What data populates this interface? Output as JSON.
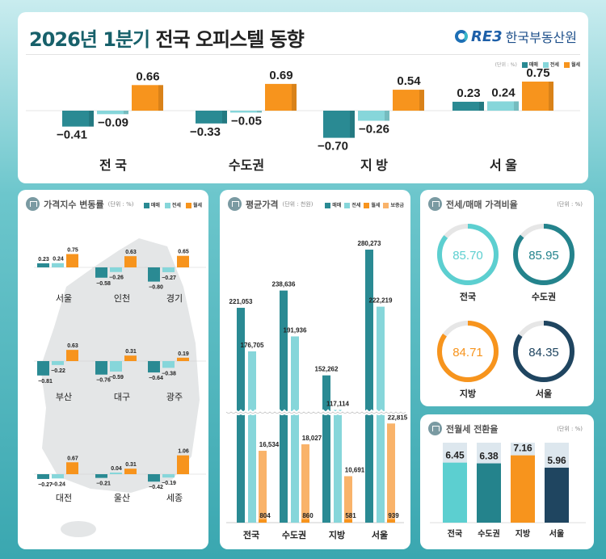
{
  "header": {
    "title_prefix": "2026년 1분기",
    "title_main": "전국 오피스텔 동향",
    "logo_text": "RE3",
    "org_name": "한국부동산원"
  },
  "colors": {
    "sale": "#2a8a93",
    "jeonse": "#86d6da",
    "wolse": "#f7941d",
    "deposit": "#f9b36a",
    "ring_national": "#5ccfd0",
    "ring_capital": "#24838c",
    "ring_local": "#f7941d",
    "ring_seoul": "#1f4560",
    "conv_bg": "#dde7ee"
  },
  "legend": {
    "unit_pct": "(단위 : %)",
    "unit_krw": "(단위 : 천원)",
    "sale": "매매",
    "jeonse": "전세",
    "wolse": "월세",
    "deposit": "보증금"
  },
  "chart_data": [
    {
      "type": "bar",
      "id": "summary",
      "categories": [
        "전 국",
        "수도권",
        "지 방",
        "서 울"
      ],
      "series": [
        {
          "name": "매매",
          "values": [
            -0.41,
            -0.33,
            -0.7,
            0.23
          ]
        },
        {
          "name": "전세",
          "values": [
            -0.09,
            -0.05,
            -0.26,
            0.24
          ]
        },
        {
          "name": "월세",
          "values": [
            0.66,
            0.69,
            0.54,
            0.75
          ]
        }
      ]
    },
    {
      "type": "bar",
      "id": "index_change",
      "title": "가격지수 변동률",
      "categories": [
        "서울",
        "인천",
        "경기",
        "부산",
        "대구",
        "광주",
        "대전",
        "울산",
        "세종"
      ],
      "series": [
        {
          "name": "매매",
          "values": [
            0.23,
            -0.58,
            -0.8,
            -0.81,
            -0.76,
            -0.64,
            -0.27,
            -0.21,
            -0.42
          ]
        },
        {
          "name": "전세",
          "values": [
            0.24,
            -0.26,
            -0.27,
            -0.22,
            -0.59,
            -0.38,
            -0.24,
            0.04,
            -0.19
          ]
        },
        {
          "name": "월세",
          "values": [
            0.75,
            0.63,
            0.65,
            0.63,
            0.31,
            0.19,
            0.67,
            0.31,
            1.06
          ]
        }
      ]
    },
    {
      "type": "bar",
      "id": "avg_price",
      "title": "평균가격",
      "categories": [
        "전국",
        "수도권",
        "지방",
        "서울"
      ],
      "axis_break": true,
      "series": [
        {
          "name": "매매",
          "values": [
            221053,
            238636,
            152262,
            280273
          ]
        },
        {
          "name": "전세",
          "values": [
            176705,
            191936,
            117114,
            222219
          ]
        },
        {
          "name": "월세",
          "values": [
            804,
            860,
            581,
            939
          ]
        },
        {
          "name": "보증금",
          "values": [
            16534,
            18027,
            10691,
            22815
          ]
        }
      ]
    },
    {
      "type": "pie",
      "id": "jeonse_ratio",
      "title": "전세/매매 가격비율",
      "categories": [
        "전국",
        "수도권",
        "지방",
        "서울"
      ],
      "values": [
        85.7,
        85.95,
        84.71,
        84.35
      ],
      "labels": [
        "85.70",
        "85.95",
        "84.71",
        "84.35"
      ]
    },
    {
      "type": "bar",
      "id": "conversion_rate",
      "title": "전월세 전환율",
      "categories": [
        "전국",
        "수도권",
        "지방",
        "서울"
      ],
      "values": [
        6.45,
        6.38,
        7.16,
        5.96
      ],
      "labels": [
        "6.45",
        "6.38",
        "7.16",
        "5.96"
      ]
    }
  ]
}
